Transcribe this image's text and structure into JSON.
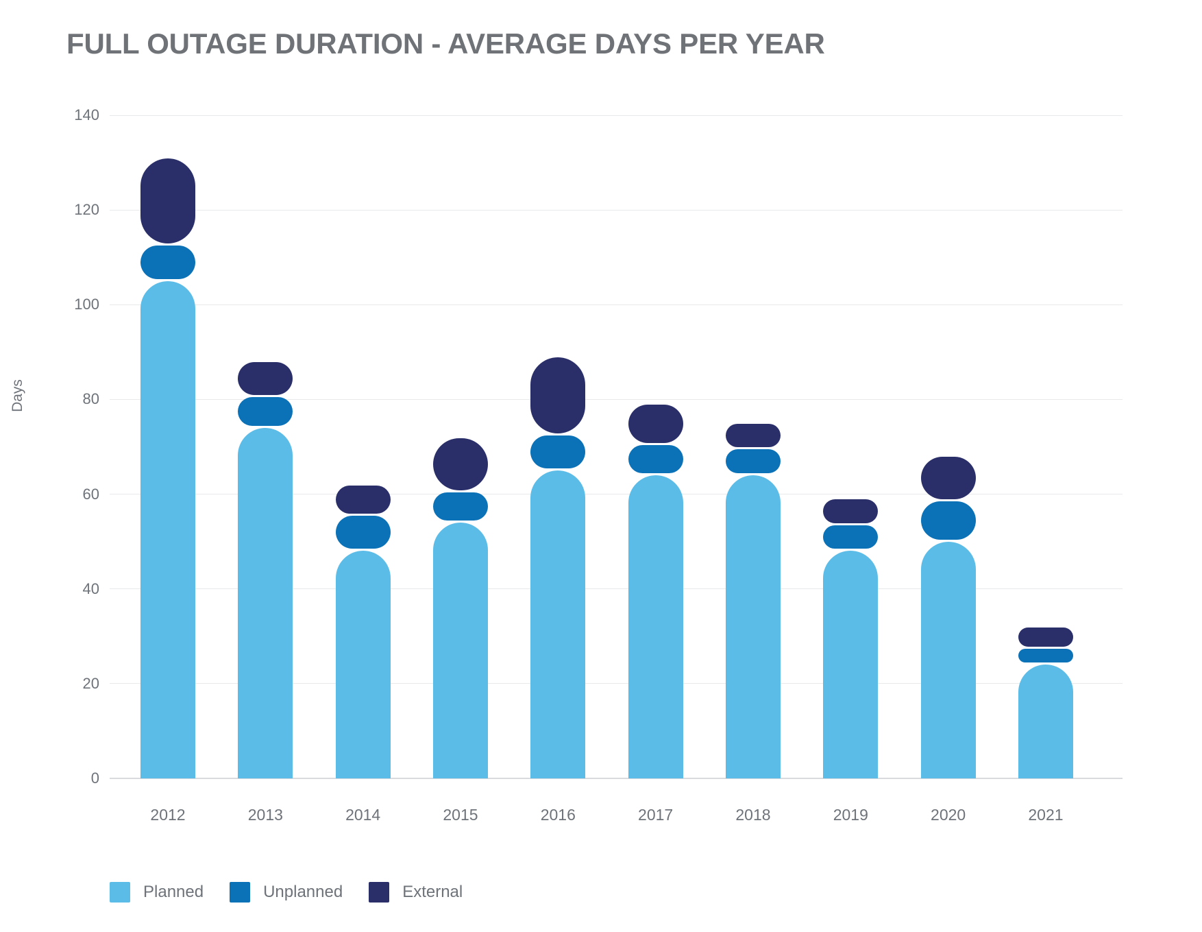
{
  "title": "FULL OUTAGE DURATION - AVERAGE DAYS PER YEAR",
  "y_axis": {
    "label": "Days",
    "ticks": [
      0,
      20,
      40,
      60,
      80,
      100,
      120,
      140
    ]
  },
  "colors": {
    "title_text": "#6F7377",
    "axis_text": "#6E737A",
    "gridline": "#E7E9EB",
    "zero_line": "#D8DADD",
    "background": "#FFFFFF"
  },
  "chart_data": {
    "type": "bar",
    "stacked": true,
    "title": "FULL OUTAGE DURATION - AVERAGE DAYS PER YEAR",
    "xlabel": "",
    "ylabel": "Days",
    "ylim": [
      0,
      140
    ],
    "grid": "horizontal",
    "legend_position": "bottom-left",
    "categories": [
      "2012",
      "2013",
      "2014",
      "2015",
      "2016",
      "2017",
      "2018",
      "2019",
      "2020",
      "2021"
    ],
    "series": [
      {
        "name": "Planned",
        "color": "#5BBCE8",
        "values": [
          105,
          74,
          48,
          54,
          65,
          64,
          64,
          48,
          50,
          24
        ]
      },
      {
        "name": "Unplanned",
        "color": "#0B72B8",
        "values": [
          7,
          6,
          7,
          6,
          7,
          6,
          5,
          5,
          8,
          3
        ]
      },
      {
        "name": "External",
        "color": "#2A2F6A",
        "values": [
          18,
          7,
          6,
          11,
          16,
          8,
          5,
          5,
          9,
          4
        ]
      }
    ],
    "totals": [
      130,
      87,
      61,
      71,
      88,
      78,
      74,
      58,
      67,
      31
    ]
  }
}
